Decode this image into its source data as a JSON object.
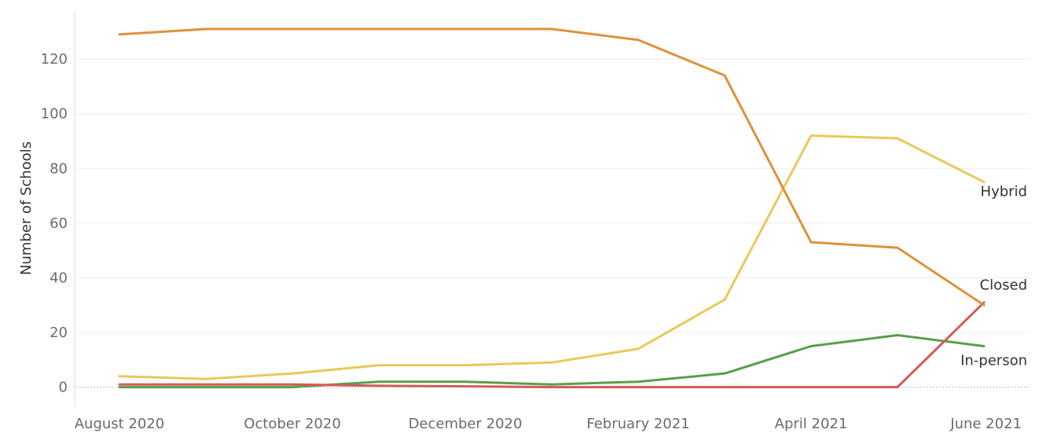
{
  "chart_data": {
    "type": "line",
    "title": "",
    "xlabel": "",
    "ylabel": "Number of Schools",
    "x": [
      "2020-08",
      "2020-09",
      "2020-10",
      "2020-11",
      "2020-12",
      "2021-01",
      "2021-02",
      "2021-03",
      "2021-04",
      "2021-05",
      "2021-06"
    ],
    "x_tick_labels": [
      {
        "x": "2020-08",
        "label": "August 2020"
      },
      {
        "x": "2020-10",
        "label": "October 2020"
      },
      {
        "x": "2020-12",
        "label": "December 2020"
      },
      {
        "x": "2021-02",
        "label": "February 2021"
      },
      {
        "x": "2021-04",
        "label": "April 2021"
      },
      {
        "x": "2021-06",
        "label": "June 2021"
      }
    ],
    "ylim": [
      -7,
      137
    ],
    "y_ticks": [
      0,
      20,
      40,
      60,
      80,
      100,
      120
    ],
    "grid": true,
    "series": [
      {
        "name": "Closed",
        "color": "#e0913a",
        "values": [
          129,
          131,
          131,
          131,
          131,
          131,
          127,
          114,
          53,
          51,
          30
        ]
      },
      {
        "name": "Hybrid",
        "color": "#e8c95a",
        "values": [
          4,
          3,
          5,
          8,
          8,
          9,
          14,
          32,
          92,
          91,
          75
        ]
      },
      {
        "name": "In-person",
        "color": "#5a9e4b",
        "values": [
          0,
          0,
          0,
          2,
          2,
          1,
          2,
          5,
          15,
          19,
          15
        ]
      },
      {
        "name": "",
        "color": "#d45a5a",
        "values": [
          1,
          1,
          1,
          0.5,
          0.3,
          0,
          0,
          0,
          0,
          0,
          31
        ]
      }
    ],
    "labels": [
      {
        "text": "Hybrid",
        "series": "Hybrid"
      },
      {
        "text": "Closed",
        "series": "Closed"
      },
      {
        "text": "In-person",
        "series": "In-person"
      }
    ]
  }
}
